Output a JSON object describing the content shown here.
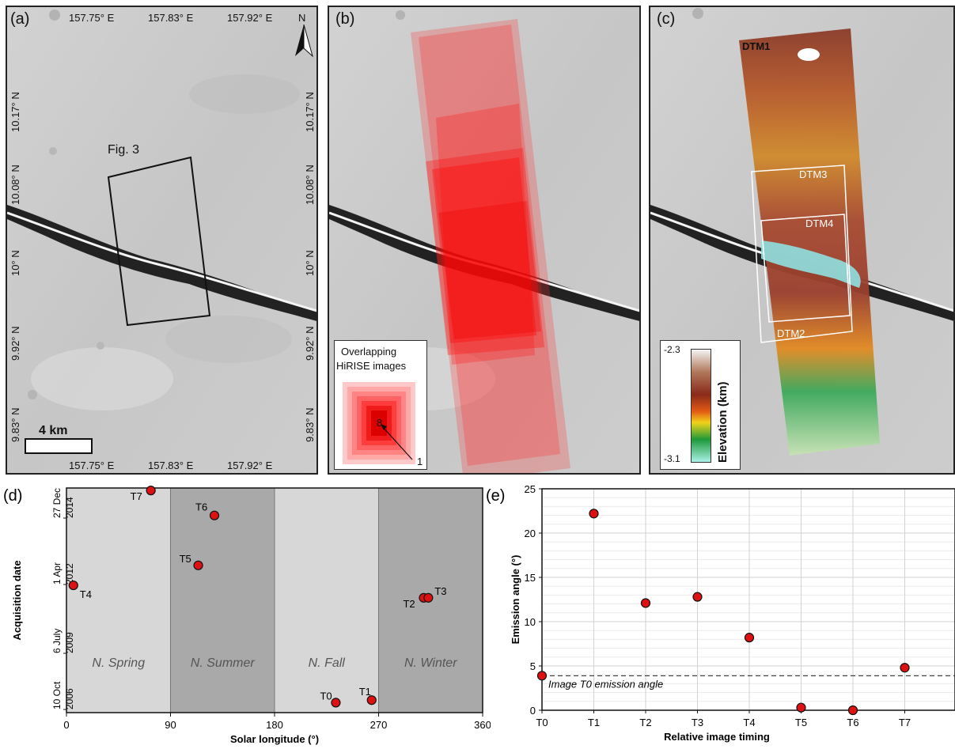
{
  "panels": {
    "a": {
      "label": "(a)",
      "lon_top": [
        "157.75° E",
        "157.83° E",
        "157.92° E"
      ],
      "lon_bottom": [
        "157.75° E",
        "157.83° E",
        "157.92° E"
      ],
      "lat_left": [
        "10.17° N",
        "10.08° N",
        "10° N",
        "9.92° N",
        "9.83° N"
      ],
      "lat_right": [
        "10.17° N",
        "10.08° N",
        "10° N",
        "9.92° N",
        "9.83° N"
      ],
      "north": "N",
      "fig_box_label": "Fig. 3",
      "scale_label": "4 km"
    },
    "b": {
      "label": "(b)",
      "inset_title_1": "Overlapping",
      "inset_title_2": "HiRISE images",
      "inset_count_high": "8",
      "inset_count_low": "1",
      "footprint_color": "#ff0000"
    },
    "c": {
      "label": "(c)",
      "dtm_labels": [
        "DTM1",
        "DTM3",
        "DTM4",
        "DTM2"
      ],
      "colorbar_max": "-2.3",
      "colorbar_min": "-3.1",
      "colorbar_title": "Elevation (km)"
    }
  },
  "chart_data": [
    {
      "panel_label": "(d)",
      "type": "scatter",
      "xlabel": "Solar longitude (°)",
      "ylabel": "Acquisition date",
      "xlim": [
        0,
        360
      ],
      "xticks": [
        "0",
        "90",
        "180",
        "270",
        "360"
      ],
      "yticks": [
        "10 Oct 2006",
        "6 July 2009",
        "1 Apr 2012",
        "27 Dec 2014"
      ],
      "ylim": [
        2006.5,
        2015.5
      ],
      "seasons": [
        {
          "name": "N. Spring",
          "from": 0,
          "to": 90,
          "color": "#d7d7d7"
        },
        {
          "name": "N. Summer",
          "from": 90,
          "to": 180,
          "color": "#a9a9a9"
        },
        {
          "name": "N. Fall",
          "from": 180,
          "to": 270,
          "color": "#d7d7d7"
        },
        {
          "name": "N. Winter",
          "from": 270,
          "to": 360,
          "color": "#a9a9a9"
        }
      ],
      "points": [
        {
          "label": "T0",
          "x": 233,
          "y": 2006.9
        },
        {
          "label": "T1",
          "x": 264,
          "y": 2007.0
        },
        {
          "label": "T2",
          "x": 309,
          "y": 2011.1
        },
        {
          "label": "T3",
          "x": 313,
          "y": 2011.1
        },
        {
          "label": "T4",
          "x": 6,
          "y": 2011.6
        },
        {
          "label": "T5",
          "x": 114,
          "y": 2012.4
        },
        {
          "label": "T6",
          "x": 128,
          "y": 2014.4
        },
        {
          "label": "T7",
          "x": 73,
          "y": 2015.4
        }
      ],
      "point_color": "#dd1111",
      "grid": false
    },
    {
      "panel_label": "(e)",
      "type": "scatter",
      "xlabel": "Relative image timing",
      "ylabel": "Emission angle (°)",
      "categories": [
        "T0",
        "T1",
        "T2",
        "T3",
        "T4",
        "T5",
        "T6",
        "T7"
      ],
      "values": [
        3.9,
        22.2,
        12.1,
        12.8,
        8.2,
        0.3,
        0.0,
        4.8
      ],
      "ylim": [
        0,
        25
      ],
      "yticks": [
        0,
        5,
        10,
        15,
        20,
        25
      ],
      "reference_line": {
        "value": 3.9,
        "label": "Image T0 emission angle"
      },
      "point_color": "#dd1111",
      "grid": true
    }
  ]
}
